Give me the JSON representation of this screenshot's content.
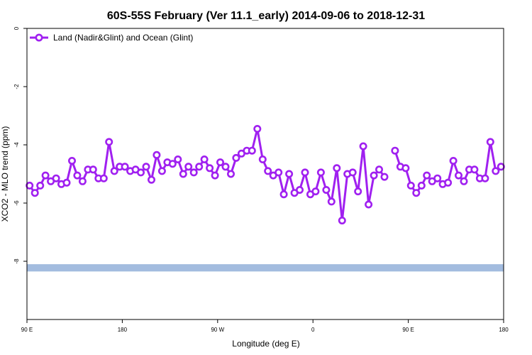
{
  "chart_data": {
    "type": "line",
    "title": "60S-55S February (Ver 11.1_early)   2014-09-06 to 2018-12-31",
    "xlabel": "Longitude (deg E)",
    "ylabel": "XCO2 - MLO trend (ppm)",
    "xlim": [
      0,
      900
    ],
    "ylim": [
      -10,
      0
    ],
    "x_ticks": [
      {
        "value": 0,
        "label": "90 E"
      },
      {
        "value": 180,
        "label": "180"
      },
      {
        "value": 360,
        "label": "90 W"
      },
      {
        "value": 540,
        "label": "0"
      },
      {
        "value": 720,
        "label": "90 E"
      },
      {
        "value": 900,
        "label": "180"
      }
    ],
    "y_ticks": [
      {
        "value": 0,
        "label": "0"
      },
      {
        "value": -2,
        "label": "-2"
      },
      {
        "value": -4,
        "label": "-4"
      },
      {
        "value": -6,
        "label": "-6"
      },
      {
        "value": -8,
        "label": "-8"
      }
    ],
    "grid": false,
    "legend_position": "top-left",
    "band": {
      "y_range": [
        -8.35,
        -8.1
      ],
      "color": "#a3bcdf"
    },
    "series": [
      {
        "name": "Land (Nadir&Glint) and Ocean (Glint)",
        "color": "#a020f0",
        "points": [
          [
            5,
            -5.4
          ],
          [
            15,
            -5.65
          ],
          [
            25,
            -5.4
          ],
          [
            35,
            -5.05
          ],
          [
            45,
            -5.25
          ],
          [
            55,
            -5.15
          ],
          [
            65,
            -5.35
          ],
          [
            75,
            -5.3
          ],
          [
            85,
            -4.55
          ],
          [
            95,
            -5.05
          ],
          [
            105,
            -5.25
          ],
          [
            115,
            -4.85
          ],
          [
            125,
            -4.85
          ],
          [
            135,
            -5.15
          ],
          [
            145,
            -5.15
          ],
          [
            155,
            -3.9
          ],
          [
            165,
            -4.9
          ],
          [
            175,
            -4.75
          ],
          [
            185,
            -4.75
          ],
          [
            195,
            -4.9
          ],
          [
            205,
            -4.85
          ],
          [
            215,
            -4.95
          ],
          [
            225,
            -4.75
          ],
          [
            235,
            -5.2
          ],
          [
            245,
            -4.35
          ],
          [
            255,
            -4.9
          ],
          [
            265,
            -4.6
          ],
          [
            275,
            -4.65
          ],
          [
            285,
            -4.5
          ],
          [
            295,
            -5.0
          ],
          [
            305,
            -4.75
          ],
          [
            315,
            -4.95
          ],
          [
            325,
            -4.75
          ],
          [
            335,
            -4.5
          ],
          [
            345,
            -4.8
          ],
          [
            355,
            -5.05
          ],
          [
            365,
            -4.6
          ],
          [
            375,
            -4.75
          ],
          [
            385,
            -5.0
          ],
          [
            395,
            -4.45
          ],
          [
            405,
            -4.3
          ],
          [
            415,
            -4.2
          ],
          [
            425,
            -4.2
          ],
          [
            435,
            -3.45
          ],
          [
            445,
            -4.5
          ],
          [
            455,
            -4.9
          ],
          [
            465,
            -5.05
          ],
          [
            475,
            -4.95
          ],
          [
            485,
            -5.7
          ],
          [
            495,
            -5.0
          ],
          [
            505,
            -5.65
          ],
          [
            515,
            -5.55
          ],
          [
            525,
            -4.95
          ],
          [
            535,
            -5.7
          ],
          [
            545,
            -5.6
          ],
          [
            555,
            -4.95
          ],
          [
            565,
            -5.55
          ],
          [
            575,
            -5.95
          ],
          [
            585,
            -4.8
          ],
          [
            595,
            -6.6
          ],
          [
            605,
            -5.0
          ],
          [
            615,
            -4.95
          ],
          [
            625,
            -5.6
          ],
          [
            635,
            -4.05
          ],
          [
            645,
            -6.05
          ],
          [
            655,
            -5.05
          ],
          [
            665,
            -4.85
          ],
          [
            675,
            -5.1
          ],
          null,
          [
            695,
            -4.2
          ],
          [
            705,
            -4.75
          ],
          [
            715,
            -4.8
          ],
          [
            725,
            -5.4
          ],
          [
            735,
            -5.65
          ],
          [
            745,
            -5.4
          ],
          [
            755,
            -5.05
          ],
          [
            765,
            -5.25
          ],
          [
            775,
            -5.15
          ],
          [
            785,
            -5.35
          ],
          [
            795,
            -5.3
          ],
          [
            805,
            -4.55
          ],
          [
            815,
            -5.05
          ],
          [
            825,
            -5.25
          ],
          [
            835,
            -4.85
          ],
          [
            845,
            -4.85
          ],
          [
            855,
            -5.15
          ],
          [
            865,
            -5.15
          ],
          [
            875,
            -3.9
          ],
          [
            885,
            -4.9
          ],
          [
            895,
            -4.75
          ]
        ]
      }
    ]
  }
}
